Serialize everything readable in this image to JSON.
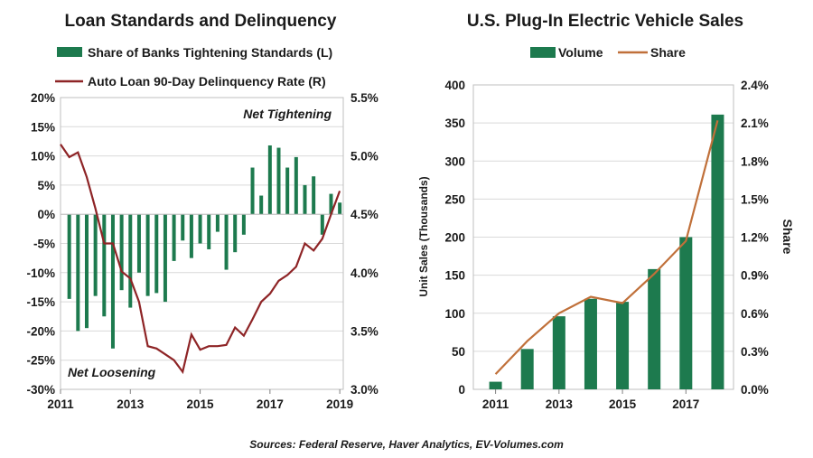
{
  "source": "Sources: Federal Reserve, Haver Analytics, EV-Volumes.com",
  "colors": {
    "bar": "#1d7a4e",
    "line_left": "#8e2426",
    "line_right": "#c0703a",
    "grid": "#d9d9d9"
  },
  "chart_data": [
    {
      "type": "bar",
      "title": "Loan Standards and Delinquency",
      "legend": [
        "Share of Banks Tightening Standards (L)",
        "Auto Loan 90-Day Delinquency Rate (R)"
      ],
      "annotations": [
        "Net Tightening",
        "Net Loosening"
      ],
      "x_ticks": [
        "2011",
        "2013",
        "2015",
        "2017",
        "2019"
      ],
      "y_left_ticks": [
        "20%",
        "15%",
        "10%",
        "5%",
        "0%",
        "-5%",
        "-10%",
        "-15%",
        "-20%",
        "-25%",
        "-30%"
      ],
      "y_right_ticks": [
        "5.5%",
        "5.0%",
        "4.5%",
        "4.0%",
        "3.5%",
        "3.0%"
      ],
      "xlim": [
        2011,
        2019.1
      ],
      "ylim_left": [
        -30,
        20
      ],
      "ylim_right": [
        3.0,
        5.5
      ],
      "series": [
        {
          "name": "Share of Banks Tightening Standards (L)",
          "kind": "bar",
          "axis": "left",
          "x": [
            2011.25,
            2011.5,
            2011.75,
            2012.0,
            2012.25,
            2012.5,
            2012.75,
            2013.0,
            2013.25,
            2013.5,
            2013.75,
            2014.0,
            2014.25,
            2014.5,
            2014.75,
            2015.0,
            2015.25,
            2015.5,
            2015.75,
            2016.0,
            2016.25,
            2016.5,
            2016.75,
            2017.0,
            2017.25,
            2017.5,
            2017.75,
            2018.0,
            2018.25,
            2018.5,
            2018.75,
            2019.0
          ],
          "values": [
            -14.5,
            -20,
            -19.5,
            -14,
            -17.5,
            -23,
            -13,
            -16,
            -10,
            -14,
            -13.5,
            -15,
            -8,
            -4.5,
            -7.5,
            -5,
            -6,
            -3,
            -9.5,
            -6.5,
            -3.5,
            8,
            3.2,
            11.8,
            11.4,
            8,
            9.8,
            5,
            6.5,
            -3.5,
            3.5,
            2
          ]
        },
        {
          "name": "Auto Loan 90-Day Delinquency Rate (R)",
          "kind": "line",
          "axis": "right",
          "x": [
            2011.0,
            2011.25,
            2011.5,
            2011.75,
            2012.0,
            2012.25,
            2012.5,
            2012.75,
            2013.0,
            2013.25,
            2013.5,
            2013.75,
            2014.0,
            2014.25,
            2014.5,
            2014.75,
            2015.0,
            2015.25,
            2015.5,
            2015.75,
            2016.0,
            2016.25,
            2016.5,
            2016.75,
            2017.0,
            2017.25,
            2017.5,
            2017.75,
            2018.0,
            2018.25,
            2018.5,
            2018.75,
            2019.0
          ],
          "values": [
            5.1,
            4.99,
            5.03,
            4.82,
            4.55,
            4.25,
            4.25,
            4.01,
            3.95,
            3.75,
            3.37,
            3.35,
            3.3,
            3.25,
            3.15,
            3.47,
            3.34,
            3.37,
            3.37,
            3.38,
            3.53,
            3.46,
            3.6,
            3.75,
            3.82,
            3.93,
            3.98,
            4.05,
            4.25,
            4.19,
            4.29,
            4.5,
            4.7
          ]
        }
      ]
    },
    {
      "type": "bar",
      "title": "U.S. Plug-In Electric Vehicle Sales",
      "legend": [
        "Volume",
        "Share"
      ],
      "ylabel_left": "Unit Sales (Thousands)",
      "ylabel_right": "Share",
      "x_ticks": [
        "2011",
        "2013",
        "2015",
        "2017"
      ],
      "y_left_ticks": [
        "400",
        "350",
        "300",
        "250",
        "200",
        "150",
        "100",
        "50",
        "0"
      ],
      "y_right_ticks": [
        "2.4%",
        "2.1%",
        "1.8%",
        "1.5%",
        "1.2%",
        "0.9%",
        "0.6%",
        "0.3%",
        "0.0%"
      ],
      "ylim_left": [
        0,
        400
      ],
      "ylim_right": [
        0,
        2.4
      ],
      "categories": [
        "2011",
        "2012",
        "2013",
        "2014",
        "2015",
        "2016",
        "2017",
        "2018"
      ],
      "series": [
        {
          "name": "Volume",
          "kind": "bar",
          "axis": "left",
          "values": [
            10,
            53,
            96,
            119,
            115,
            158,
            200,
            361
          ]
        },
        {
          "name": "Share",
          "kind": "line",
          "axis": "right",
          "values": [
            0.12,
            0.38,
            0.6,
            0.73,
            0.68,
            0.91,
            1.17,
            2.12
          ]
        }
      ]
    }
  ]
}
